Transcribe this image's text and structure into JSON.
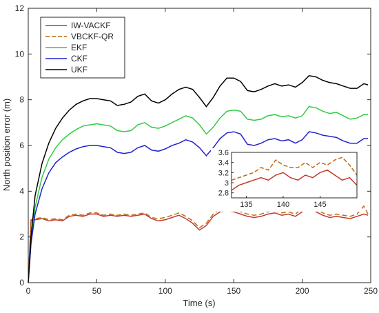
{
  "chart_data": {
    "type": "line",
    "title": "",
    "xlabel": "Time (s)",
    "ylabel": "North position error (m)",
    "xlim": [
      0,
      250
    ],
    "ylim": [
      0,
      12
    ],
    "xticks": [
      0,
      50,
      100,
      150,
      200,
      250
    ],
    "yticks": [
      0,
      2,
      4,
      6,
      8,
      10,
      12
    ],
    "grid": false,
    "legend_position": "top-left",
    "series": [
      {
        "name": "IW-VACKF",
        "color": "#c0392b",
        "dash": "solid",
        "x": [
          0,
          2,
          5,
          10,
          15,
          20,
          25,
          30,
          35,
          40,
          45,
          50,
          55,
          60,
          65,
          70,
          75,
          80,
          85,
          90,
          95,
          100,
          105,
          110,
          115,
          120,
          125,
          130,
          135,
          140,
          145,
          150,
          155,
          160,
          165,
          170,
          175,
          180,
          185,
          190,
          195,
          200,
          205,
          210,
          215,
          220,
          225,
          230,
          235,
          240,
          245,
          248
        ],
        "y": [
          0,
          2.7,
          2.75,
          2.8,
          2.7,
          2.75,
          2.7,
          2.9,
          2.95,
          2.9,
          3.0,
          3.0,
          2.9,
          2.95,
          2.9,
          2.95,
          2.9,
          2.95,
          3.0,
          2.8,
          2.7,
          2.75,
          2.85,
          2.95,
          2.8,
          2.6,
          2.3,
          2.5,
          2.9,
          3.1,
          3.15,
          3.1,
          3.0,
          2.9,
          2.85,
          2.9,
          3.0,
          3.05,
          2.95,
          3.0,
          2.9,
          3.1,
          3.3,
          3.1,
          2.95,
          2.85,
          2.9,
          2.85,
          2.8,
          2.9,
          3.0,
          2.95
        ]
      },
      {
        "name": "VBCKF-QR",
        "color": "#c06a10",
        "dash": "dashed",
        "x": [
          0,
          2,
          5,
          10,
          15,
          20,
          25,
          30,
          35,
          40,
          45,
          50,
          55,
          60,
          65,
          70,
          75,
          80,
          85,
          90,
          95,
          100,
          105,
          110,
          115,
          120,
          125,
          130,
          135,
          140,
          145,
          150,
          155,
          160,
          165,
          170,
          175,
          180,
          185,
          190,
          195,
          200,
          205,
          210,
          215,
          220,
          225,
          230,
          235,
          240,
          245,
          248
        ],
        "y": [
          0,
          2.75,
          2.8,
          2.85,
          2.75,
          2.8,
          2.75,
          2.95,
          3.0,
          2.95,
          3.05,
          3.05,
          2.95,
          3.0,
          2.95,
          3.0,
          2.95,
          3.0,
          3.05,
          2.85,
          2.8,
          2.85,
          2.95,
          3.05,
          2.9,
          2.7,
          2.4,
          2.6,
          3.0,
          3.2,
          3.25,
          3.2,
          3.1,
          3.0,
          2.95,
          3.0,
          3.1,
          3.15,
          3.05,
          3.1,
          3.0,
          3.25,
          3.45,
          3.25,
          3.05,
          2.95,
          3.0,
          2.95,
          2.9,
          3.0,
          3.35,
          3.0
        ]
      },
      {
        "name": "EKF",
        "color": "#2ecc40",
        "dash": "solid",
        "x": [
          0,
          2,
          5,
          10,
          15,
          20,
          25,
          30,
          35,
          40,
          45,
          50,
          55,
          60,
          65,
          70,
          75,
          80,
          85,
          90,
          95,
          100,
          105,
          110,
          115,
          120,
          125,
          130,
          135,
          140,
          145,
          150,
          155,
          160,
          165,
          170,
          175,
          180,
          185,
          190,
          195,
          200,
          205,
          210,
          215,
          220,
          225,
          230,
          235,
          240,
          245,
          248
        ],
        "y": [
          0,
          1.8,
          3.3,
          4.6,
          5.4,
          5.9,
          6.25,
          6.5,
          6.7,
          6.85,
          6.9,
          6.95,
          6.9,
          6.85,
          6.65,
          6.6,
          6.65,
          6.9,
          7.0,
          6.8,
          6.75,
          6.85,
          7.0,
          7.15,
          7.3,
          7.2,
          6.9,
          6.5,
          6.8,
          7.2,
          7.5,
          7.55,
          7.5,
          7.15,
          7.1,
          7.15,
          7.3,
          7.35,
          7.25,
          7.3,
          7.2,
          7.3,
          7.7,
          7.65,
          7.5,
          7.4,
          7.45,
          7.3,
          7.15,
          7.2,
          7.35,
          7.35
        ]
      },
      {
        "name": "CKF",
        "color": "#2222cc",
        "dash": "solid",
        "x": [
          0,
          2,
          5,
          10,
          15,
          20,
          25,
          30,
          35,
          40,
          45,
          50,
          55,
          60,
          65,
          70,
          75,
          80,
          85,
          90,
          95,
          100,
          105,
          110,
          115,
          120,
          125,
          130,
          135,
          140,
          145,
          150,
          155,
          160,
          165,
          170,
          175,
          180,
          185,
          190,
          195,
          200,
          205,
          210,
          215,
          220,
          225,
          230,
          235,
          240,
          245,
          248
        ],
        "y": [
          0,
          1.7,
          3.0,
          4.1,
          4.8,
          5.25,
          5.5,
          5.7,
          5.85,
          5.95,
          6.0,
          6.0,
          5.95,
          5.9,
          5.7,
          5.65,
          5.7,
          5.9,
          6.0,
          5.8,
          5.75,
          5.85,
          6.0,
          6.1,
          6.25,
          6.15,
          5.9,
          5.55,
          5.9,
          6.3,
          6.55,
          6.6,
          6.5,
          6.05,
          6.0,
          6.1,
          6.25,
          6.3,
          6.2,
          6.25,
          6.1,
          6.25,
          6.6,
          6.55,
          6.45,
          6.4,
          6.35,
          6.2,
          6.1,
          6.1,
          6.3,
          6.3
        ]
      },
      {
        "name": "UKF",
        "color": "#000000",
        "dash": "solid",
        "x": [
          0,
          2,
          5,
          10,
          15,
          20,
          25,
          30,
          35,
          40,
          45,
          50,
          55,
          60,
          65,
          70,
          75,
          80,
          85,
          90,
          95,
          100,
          105,
          110,
          115,
          120,
          125,
          130,
          135,
          140,
          145,
          150,
          155,
          160,
          165,
          170,
          175,
          180,
          185,
          190,
          195,
          200,
          205,
          210,
          215,
          220,
          225,
          230,
          235,
          240,
          245,
          248
        ],
        "y": [
          0,
          2.0,
          3.8,
          5.2,
          6.1,
          6.75,
          7.2,
          7.55,
          7.8,
          7.95,
          8.05,
          8.05,
          8.0,
          7.95,
          7.75,
          7.8,
          7.9,
          8.15,
          8.25,
          7.95,
          7.85,
          8.0,
          8.25,
          8.45,
          8.55,
          8.45,
          8.1,
          7.7,
          8.1,
          8.6,
          8.95,
          8.95,
          8.8,
          8.4,
          8.35,
          8.45,
          8.6,
          8.7,
          8.6,
          8.65,
          8.55,
          8.75,
          9.05,
          9.0,
          8.85,
          8.75,
          8.7,
          8.6,
          8.5,
          8.5,
          8.7,
          8.65
        ]
      }
    ],
    "inset": {
      "type": "line",
      "xlim": [
        133,
        150
      ],
      "ylim": [
        2.7,
        3.6
      ],
      "xticks": [
        135,
        140,
        145
      ],
      "yticks": [
        2.8,
        3,
        3.2,
        3.4,
        3.6
      ],
      "series": [
        {
          "name": "IW-VACKF",
          "x": [
            133,
            134,
            135,
            136,
            137,
            138,
            139,
            140,
            141,
            142,
            143,
            144,
            145,
            146,
            147,
            148,
            149,
            150
          ],
          "y": [
            2.85,
            2.95,
            3.0,
            3.05,
            3.1,
            3.05,
            3.15,
            3.2,
            3.1,
            3.05,
            3.15,
            3.1,
            3.2,
            3.25,
            3.15,
            3.05,
            3.1,
            2.95
          ]
        },
        {
          "name": "VBCKF-QR",
          "x": [
            133,
            134,
            135,
            136,
            137,
            138,
            139,
            140,
            141,
            142,
            143,
            144,
            145,
            146,
            147,
            148,
            149,
            150
          ],
          "y": [
            3.05,
            3.1,
            3.15,
            3.2,
            3.3,
            3.25,
            3.45,
            3.35,
            3.3,
            3.3,
            3.4,
            3.3,
            3.4,
            3.35,
            3.45,
            3.5,
            3.35,
            3.15
          ]
        }
      ]
    }
  }
}
